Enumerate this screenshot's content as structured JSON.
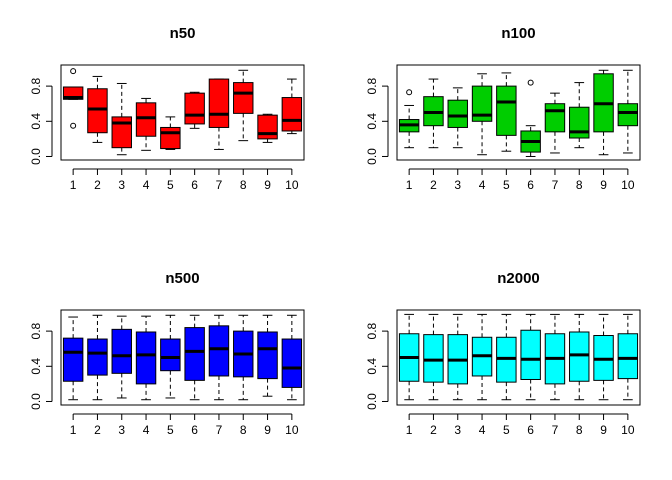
{
  "chart_data": [
    {
      "type": "boxplot",
      "title": "n50",
      "color": "#FF0000",
      "categories": [
        "1",
        "2",
        "3",
        "4",
        "5",
        "6",
        "7",
        "8",
        "9",
        "10"
      ],
      "ylim": [
        0,
        1
      ],
      "yticks": [
        "0.0",
        "0.4",
        "0.8"
      ],
      "ytick_values": [
        0,
        0.4,
        0.8
      ],
      "boxes": [
        {
          "min": 0.65,
          "q1": 0.65,
          "median": 0.67,
          "q3": 0.79,
          "max": 0.79,
          "outliers": [
            0.97,
            0.35
          ]
        },
        {
          "min": 0.16,
          "q1": 0.27,
          "median": 0.54,
          "q3": 0.77,
          "max": 0.91,
          "outliers": []
        },
        {
          "min": 0.02,
          "q1": 0.1,
          "median": 0.38,
          "q3": 0.45,
          "max": 0.83,
          "outliers": []
        },
        {
          "min": 0.07,
          "q1": 0.23,
          "median": 0.44,
          "q3": 0.61,
          "max": 0.66,
          "outliers": []
        },
        {
          "min": 0.08,
          "q1": 0.09,
          "median": 0.27,
          "q3": 0.33,
          "max": 0.45,
          "outliers": []
        },
        {
          "min": 0.32,
          "q1": 0.37,
          "median": 0.47,
          "q3": 0.72,
          "max": 0.73,
          "outliers": []
        },
        {
          "min": 0.08,
          "q1": 0.33,
          "median": 0.48,
          "q3": 0.88,
          "max": 0.88,
          "outliers": []
        },
        {
          "min": 0.18,
          "q1": 0.49,
          "median": 0.72,
          "q3": 0.84,
          "max": 0.98,
          "outliers": []
        },
        {
          "min": 0.16,
          "q1": 0.2,
          "median": 0.26,
          "q3": 0.47,
          "max": 0.48,
          "outliers": []
        },
        {
          "min": 0.26,
          "q1": 0.29,
          "median": 0.41,
          "q3": 0.67,
          "max": 0.88,
          "outliers": []
        }
      ]
    },
    {
      "type": "boxplot",
      "title": "n100",
      "color": "#00CD00",
      "categories": [
        "1",
        "2",
        "3",
        "4",
        "5",
        "6",
        "7",
        "8",
        "9",
        "10"
      ],
      "ylim": [
        0,
        1
      ],
      "yticks": [
        "0.0",
        "0.4",
        "0.8"
      ],
      "ytick_values": [
        0,
        0.4,
        0.8
      ],
      "boxes": [
        {
          "min": 0.1,
          "q1": 0.28,
          "median": 0.36,
          "q3": 0.42,
          "max": 0.58,
          "outliers": [
            0.73
          ]
        },
        {
          "min": 0.1,
          "q1": 0.35,
          "median": 0.5,
          "q3": 0.68,
          "max": 0.88,
          "outliers": []
        },
        {
          "min": 0.1,
          "q1": 0.33,
          "median": 0.46,
          "q3": 0.64,
          "max": 0.78,
          "outliers": []
        },
        {
          "min": 0.02,
          "q1": 0.4,
          "median": 0.47,
          "q3": 0.8,
          "max": 0.94,
          "outliers": []
        },
        {
          "min": 0.06,
          "q1": 0.24,
          "median": 0.62,
          "q3": 0.8,
          "max": 0.95,
          "outliers": []
        },
        {
          "min": 0.0,
          "q1": 0.05,
          "median": 0.17,
          "q3": 0.29,
          "max": 0.35,
          "outliers": [
            0.84
          ]
        },
        {
          "min": 0.04,
          "q1": 0.28,
          "median": 0.52,
          "q3": 0.6,
          "max": 0.72,
          "outliers": []
        },
        {
          "min": 0.1,
          "q1": 0.21,
          "median": 0.28,
          "q3": 0.56,
          "max": 0.84,
          "outliers": []
        },
        {
          "min": 0.02,
          "q1": 0.28,
          "median": 0.6,
          "q3": 0.94,
          "max": 0.98,
          "outliers": []
        },
        {
          "min": 0.04,
          "q1": 0.35,
          "median": 0.5,
          "q3": 0.6,
          "max": 0.98,
          "outliers": []
        }
      ]
    },
    {
      "type": "boxplot",
      "title": "n500",
      "color": "#0000FF",
      "categories": [
        "1",
        "2",
        "3",
        "4",
        "5",
        "6",
        "7",
        "8",
        "9",
        "10"
      ],
      "ylim": [
        0,
        1
      ],
      "yticks": [
        "0.0",
        "0.4",
        "0.8"
      ],
      "ytick_values": [
        0,
        0.4,
        0.8
      ],
      "boxes": [
        {
          "min": 0.02,
          "q1": 0.23,
          "median": 0.56,
          "q3": 0.72,
          "max": 0.96,
          "outliers": []
        },
        {
          "min": 0.02,
          "q1": 0.3,
          "median": 0.55,
          "q3": 0.71,
          "max": 0.98,
          "outliers": []
        },
        {
          "min": 0.04,
          "q1": 0.32,
          "median": 0.52,
          "q3": 0.82,
          "max": 0.97,
          "outliers": []
        },
        {
          "min": 0.02,
          "q1": 0.2,
          "median": 0.53,
          "q3": 0.79,
          "max": 0.97,
          "outliers": []
        },
        {
          "min": 0.04,
          "q1": 0.35,
          "median": 0.5,
          "q3": 0.71,
          "max": 0.98,
          "outliers": []
        },
        {
          "min": 0.02,
          "q1": 0.24,
          "median": 0.57,
          "q3": 0.84,
          "max": 0.98,
          "outliers": []
        },
        {
          "min": 0.02,
          "q1": 0.29,
          "median": 0.6,
          "q3": 0.86,
          "max": 0.98,
          "outliers": []
        },
        {
          "min": 0.02,
          "q1": 0.28,
          "median": 0.54,
          "q3": 0.8,
          "max": 0.98,
          "outliers": []
        },
        {
          "min": 0.06,
          "q1": 0.26,
          "median": 0.6,
          "q3": 0.79,
          "max": 0.98,
          "outliers": []
        },
        {
          "min": 0.02,
          "q1": 0.16,
          "median": 0.38,
          "q3": 0.71,
          "max": 0.98,
          "outliers": []
        }
      ]
    },
    {
      "type": "boxplot",
      "title": "n2000",
      "color": "#00FFFF",
      "categories": [
        "1",
        "2",
        "3",
        "4",
        "5",
        "6",
        "7",
        "8",
        "9",
        "10"
      ],
      "ylim": [
        0,
        1
      ],
      "yticks": [
        "0.0",
        "0.4",
        "0.8"
      ],
      "ytick_values": [
        0,
        0.4,
        0.8
      ],
      "boxes": [
        {
          "min": 0.02,
          "q1": 0.23,
          "median": 0.5,
          "q3": 0.77,
          "max": 0.99,
          "outliers": []
        },
        {
          "min": 0.02,
          "q1": 0.22,
          "median": 0.47,
          "q3": 0.76,
          "max": 0.99,
          "outliers": []
        },
        {
          "min": 0.02,
          "q1": 0.2,
          "median": 0.47,
          "q3": 0.76,
          "max": 0.99,
          "outliers": []
        },
        {
          "min": 0.02,
          "q1": 0.29,
          "median": 0.52,
          "q3": 0.73,
          "max": 0.99,
          "outliers": []
        },
        {
          "min": 0.02,
          "q1": 0.22,
          "median": 0.49,
          "q3": 0.73,
          "max": 0.99,
          "outliers": []
        },
        {
          "min": 0.02,
          "q1": 0.25,
          "median": 0.48,
          "q3": 0.81,
          "max": 0.99,
          "outliers": []
        },
        {
          "min": 0.02,
          "q1": 0.2,
          "median": 0.49,
          "q3": 0.77,
          "max": 0.99,
          "outliers": []
        },
        {
          "min": 0.02,
          "q1": 0.23,
          "median": 0.53,
          "q3": 0.79,
          "max": 0.99,
          "outliers": []
        },
        {
          "min": 0.02,
          "q1": 0.24,
          "median": 0.48,
          "q3": 0.75,
          "max": 0.99,
          "outliers": []
        },
        {
          "min": 0.02,
          "q1": 0.26,
          "median": 0.49,
          "q3": 0.77,
          "max": 0.99,
          "outliers": []
        }
      ]
    }
  ]
}
